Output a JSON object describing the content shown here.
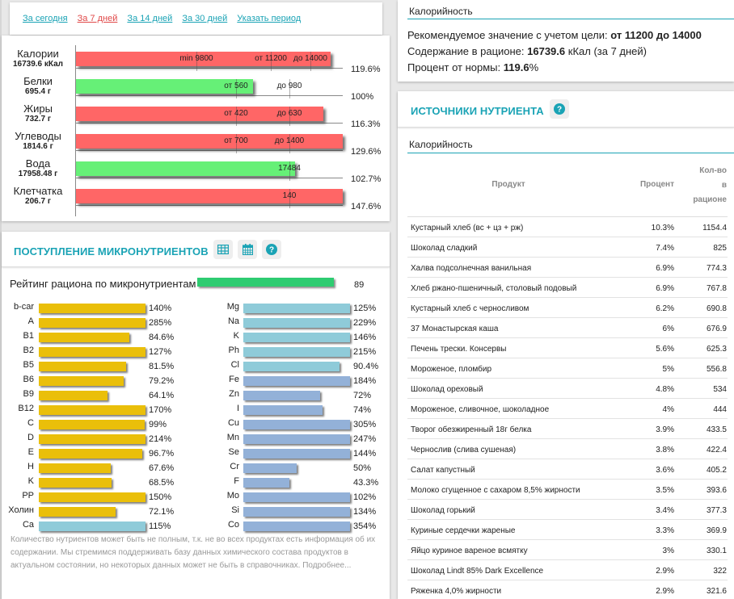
{
  "period": {
    "links": [
      {
        "label": "За сегодня",
        "active": false
      },
      {
        "label": "За 7 дней",
        "active": true
      },
      {
        "label": "За 14 дней",
        "active": false
      },
      {
        "label": "За 30 дней",
        "active": false
      },
      {
        "label": "Указать период",
        "active": false
      }
    ]
  },
  "macros": {
    "rows": [
      {
        "name": "Калории",
        "value": "16739.6 кКал",
        "percent": "119.6%",
        "status": "red",
        "fill": 0.955,
        "markers": [
          {
            "label": "min 9800",
            "pos": 0.45
          },
          {
            "label": "от 11200",
            "pos": 0.73
          },
          {
            "label": "до 14000",
            "pos": 0.88
          }
        ]
      },
      {
        "name": "Белки",
        "value": "695.4 г",
        "percent": "100%",
        "status": "green",
        "fill": 0.665,
        "markers": [
          {
            "label": "от 560",
            "pos": 0.6
          },
          {
            "label": "до 980",
            "pos": 0.8
          }
        ]
      },
      {
        "name": "Жиры",
        "value": "732.7 г",
        "percent": "116.3%",
        "status": "red",
        "fill": 0.927,
        "markers": [
          {
            "label": "от 420",
            "pos": 0.6
          },
          {
            "label": "до 630",
            "pos": 0.8
          }
        ]
      },
      {
        "name": "Углеводы",
        "value": "1814.6 г",
        "percent": "129.6%",
        "status": "red",
        "fill": 1.0,
        "markers": [
          {
            "label": "от 700",
            "pos": 0.6
          },
          {
            "label": "до 1400",
            "pos": 0.8
          }
        ]
      },
      {
        "name": "Вода",
        "value": "17958.48 г",
        "percent": "102.7%",
        "status": "green",
        "fill": 0.82,
        "markers": [
          {
            "label": "17484",
            "pos": 0.8
          }
        ]
      },
      {
        "name": "Клетчатка",
        "value": "206.7 г",
        "percent": "147.6%",
        "status": "red",
        "fill": 1.0,
        "markers": [
          {
            "label": "140",
            "pos": 0.8
          }
        ]
      }
    ]
  },
  "micro": {
    "title": "ПОСТУПЛЕНИЕ МИКРОНУТРИЕНТОВ",
    "icons": [
      "table-icon",
      "calendar-icon",
      "help-icon"
    ],
    "rating_label": "Рейтинг рациона по микронутриентам",
    "rating_value": "89",
    "rating_fill": 0.89,
    "colors": {
      "vitamin": "#eabf0a",
      "mineral_light": "#8fcbd9",
      "mineral_dark": "#93b1d8"
    },
    "left": [
      {
        "name": "b-car",
        "percent": "140%",
        "value": 140,
        "color": "vitamin"
      },
      {
        "name": "A",
        "percent": "285%",
        "value": 285,
        "color": "vitamin"
      },
      {
        "name": "B1",
        "percent": "84.6%",
        "value": 84.6,
        "color": "vitamin"
      },
      {
        "name": "B2",
        "percent": "127%",
        "value": 127,
        "color": "vitamin"
      },
      {
        "name": "B5",
        "percent": "81.5%",
        "value": 81.5,
        "color": "vitamin"
      },
      {
        "name": "B6",
        "percent": "79.2%",
        "value": 79.2,
        "color": "vitamin"
      },
      {
        "name": "B9",
        "percent": "64.1%",
        "value": 64.1,
        "color": "vitamin"
      },
      {
        "name": "B12",
        "percent": "170%",
        "value": 170,
        "color": "vitamin"
      },
      {
        "name": "C",
        "percent": "99%",
        "value": 99,
        "color": "vitamin"
      },
      {
        "name": "D",
        "percent": "214%",
        "value": 214,
        "color": "vitamin"
      },
      {
        "name": "E",
        "percent": "96.7%",
        "value": 96.7,
        "color": "vitamin"
      },
      {
        "name": "H",
        "percent": "67.6%",
        "value": 67.6,
        "color": "vitamin"
      },
      {
        "name": "K",
        "percent": "68.5%",
        "value": 68.5,
        "color": "vitamin"
      },
      {
        "name": "PP",
        "percent": "150%",
        "value": 150,
        "color": "vitamin"
      },
      {
        "name": "Холин",
        "percent": "72.1%",
        "value": 72.1,
        "color": "vitamin"
      },
      {
        "name": "Ca",
        "percent": "115%",
        "value": 115,
        "color": "mineral_light"
      }
    ],
    "right": [
      {
        "name": "Mg",
        "percent": "125%",
        "value": 125,
        "color": "mineral_light"
      },
      {
        "name": "Na",
        "percent": "229%",
        "value": 229,
        "color": "mineral_light"
      },
      {
        "name": "K",
        "percent": "146%",
        "value": 146,
        "color": "mineral_light"
      },
      {
        "name": "Ph",
        "percent": "215%",
        "value": 215,
        "color": "mineral_light"
      },
      {
        "name": "Cl",
        "percent": "90.4%",
        "value": 90.4,
        "color": "mineral_light"
      },
      {
        "name": "Fe",
        "percent": "184%",
        "value": 184,
        "color": "mineral_dark"
      },
      {
        "name": "Zn",
        "percent": "72%",
        "value": 72,
        "color": "mineral_dark"
      },
      {
        "name": "I",
        "percent": "74%",
        "value": 74,
        "color": "mineral_dark"
      },
      {
        "name": "Cu",
        "percent": "305%",
        "value": 305,
        "color": "mineral_dark"
      },
      {
        "name": "Mn",
        "percent": "247%",
        "value": 247,
        "color": "mineral_dark"
      },
      {
        "name": "Se",
        "percent": "144%",
        "value": 144,
        "color": "mineral_dark"
      },
      {
        "name": "Cr",
        "percent": "50%",
        "value": 50,
        "color": "mineral_dark"
      },
      {
        "name": "F",
        "percent": "43.3%",
        "value": 43.3,
        "color": "mineral_dark"
      },
      {
        "name": "Mo",
        "percent": "102%",
        "value": 102,
        "color": "mineral_dark"
      },
      {
        "name": "Si",
        "percent": "134%",
        "value": 134,
        "color": "mineral_dark"
      },
      {
        "name": "Co",
        "percent": "354%",
        "value": 354,
        "color": "mineral_dark"
      }
    ],
    "note": "Количество нутриентов может быть не полным, т.к. не во всех продуктах есть информация об их содержании. Мы стремимся поддерживать базу данных химического состава продуктов в актуальном состоянии, но некоторых данных может не быть в справочниках. Подробнее..."
  },
  "calorie_summary": {
    "subtitle": "Калорийность",
    "recommended_label": "Рекомендуемое значение с учетом цели: ",
    "recommended_value": "от 11200 до 14000",
    "content_label": "Содержание в рационе: ",
    "content_value": "16739.6",
    "content_suffix": " кКал (за 7 дней)",
    "percent_label": "Процент от нормы: ",
    "percent_value": "119.6",
    "percent_suffix": "%"
  },
  "sources": {
    "title": "ИСТОЧНИКИ НУТРИЕНТА",
    "subtitle": "Калорийность",
    "columns": {
      "product": "Продукт",
      "percent": "Процент",
      "qty_line1": "Кол-во",
      "qty_line2": "в",
      "qty_line3": "рационе"
    },
    "rows": [
      {
        "product": "Кустарный хлеб (вс + цз + рж)",
        "percent": "10.3%",
        "qty": "1154.4"
      },
      {
        "product": "Шоколад сладкий",
        "percent": "7.4%",
        "qty": "825"
      },
      {
        "product": "Халва подсолнечная ванильная",
        "percent": "6.9%",
        "qty": "774.3"
      },
      {
        "product": "Хлеб ржано-пшеничный, столовый подовый",
        "percent": "6.9%",
        "qty": "767.8"
      },
      {
        "product": "Кустарный хлеб с черносливом",
        "percent": "6.2%",
        "qty": "690.8"
      },
      {
        "product": "37 Монастырская каша",
        "percent": "6%",
        "qty": "676.9"
      },
      {
        "product": "Печень трески. Консервы",
        "percent": "5.6%",
        "qty": "625.3"
      },
      {
        "product": "Мороженое, пломбир",
        "percent": "5%",
        "qty": "556.8"
      },
      {
        "product": "Шоколад ореховый",
        "percent": "4.8%",
        "qty": "534"
      },
      {
        "product": "Мороженое, сливочное, шоколадное",
        "percent": "4%",
        "qty": "444"
      },
      {
        "product": "Творог обезжиренный 18г белка",
        "percent": "3.9%",
        "qty": "433.5"
      },
      {
        "product": "Чернослив (слива сушеная)",
        "percent": "3.8%",
        "qty": "422.4"
      },
      {
        "product": "Салат капустный",
        "percent": "3.6%",
        "qty": "405.2"
      },
      {
        "product": "Молоко сгущенное с сахаром 8,5% жирности",
        "percent": "3.5%",
        "qty": "393.6"
      },
      {
        "product": "Шоколад горький",
        "percent": "3.4%",
        "qty": "377.3"
      },
      {
        "product": "Куриные сердечки жареные",
        "percent": "3.3%",
        "qty": "369.9"
      },
      {
        "product": "Яйцо куриное вареное всмятку",
        "percent": "3%",
        "qty": "330.1"
      },
      {
        "product": "Шоколад Lindt 85% Dark Excellence",
        "percent": "2.9%",
        "qty": "322"
      },
      {
        "product": "Ряженка 4,0% жирности",
        "percent": "2.9%",
        "qty": "321.6"
      }
    ]
  }
}
